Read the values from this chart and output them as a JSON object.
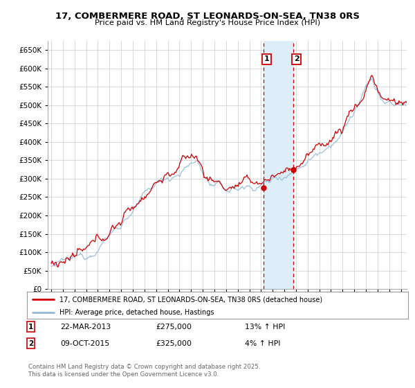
{
  "title": "17, COMBERMERE ROAD, ST LEONARDS-ON-SEA, TN38 0RS",
  "subtitle": "Price paid vs. HM Land Registry's House Price Index (HPI)",
  "legend_line1": "17, COMBERMERE ROAD, ST LEONARDS-ON-SEA, TN38 0RS (detached house)",
  "legend_line2": "HPI: Average price, detached house, Hastings",
  "footer": "Contains HM Land Registry data © Crown copyright and database right 2025.\nThis data is licensed under the Open Government Licence v3.0.",
  "annotation1_date": "22-MAR-2013",
  "annotation1_price": "£275,000",
  "annotation1_hpi": "13% ↑ HPI",
  "annotation1_year": 2013.22,
  "annotation2_date": "09-OCT-2015",
  "annotation2_price": "£325,000",
  "annotation2_hpi": "4% ↑ HPI",
  "annotation2_year": 2015.77,
  "shade_start": 2013.22,
  "shade_end": 2015.77,
  "hpi_color": "#93b8d8",
  "price_color": "#cc0000",
  "vline_color": "#cc0000",
  "shade_color": "#ddeef9",
  "background_color": "#ffffff",
  "grid_color": "#cccccc",
  "ylim": [
    0,
    675000
  ],
  "xlim_start": 1994.7,
  "xlim_end": 2025.5,
  "ytick_step": 50000
}
